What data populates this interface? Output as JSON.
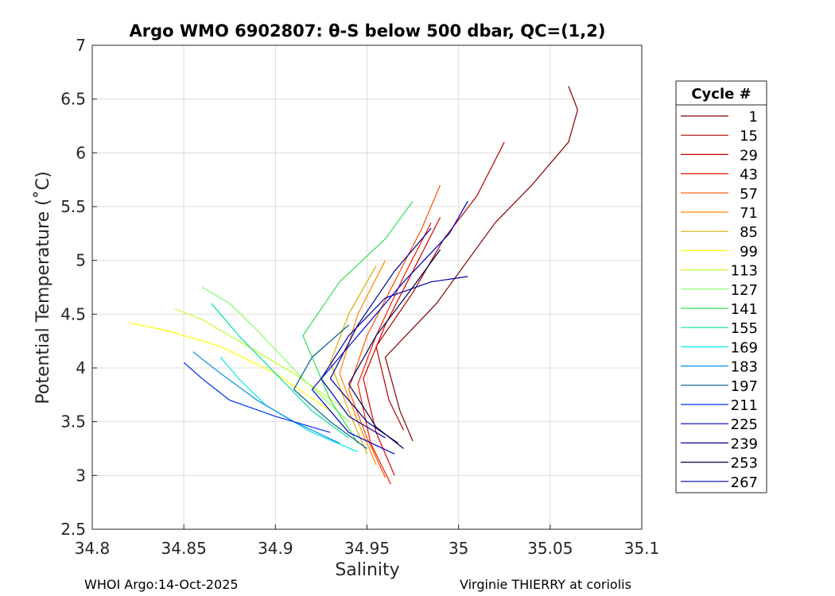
{
  "footer": {
    "left": "WHOI Argo:14-Oct-2025",
    "right": "Virginie THIERRY at coriolis"
  },
  "chart_data": {
    "type": "line",
    "title": "Argo WMO 6902807: θ-S below 500 dbar,  QC=(1,2)",
    "xlabel": "Salinity",
    "ylabel": "Potential Temperature (˚C)",
    "xlim": [
      34.8,
      35.1
    ],
    "ylim": [
      2.5,
      7
    ],
    "xticks": [
      "34.8",
      "34.85",
      "34.9",
      "34.95",
      "35",
      "35.05",
      "35.1"
    ],
    "yticks": [
      "2.5",
      "3",
      "3.5",
      "4",
      "4.5",
      "5",
      "5.5",
      "6",
      "6.5",
      "7"
    ],
    "grid": true,
    "legend": {
      "title": "Cycle #",
      "placement": "right, outside"
    },
    "series": [
      {
        "name": "1",
        "color": "#800000",
        "salinity": [
          34.975,
          34.968,
          34.96,
          34.988,
          35.005,
          35.02,
          35.04,
          35.06,
          35.065,
          35.06
        ],
        "theta": [
          3.32,
          3.6,
          4.1,
          4.6,
          5.0,
          5.35,
          5.7,
          6.1,
          6.4,
          6.62
        ]
      },
      {
        "name": "15",
        "color": "#b00000",
        "salinity": [
          34.97,
          34.962,
          34.955,
          34.975,
          34.992,
          35.01,
          35.025
        ],
        "theta": [
          3.42,
          3.7,
          4.2,
          4.7,
          5.2,
          5.6,
          6.1
        ]
      },
      {
        "name": "29",
        "color": "#d40000",
        "salinity": [
          34.965,
          34.955,
          34.948,
          34.96,
          34.975,
          34.99
        ],
        "theta": [
          3.0,
          3.4,
          3.9,
          4.4,
          4.9,
          5.4
        ]
      },
      {
        "name": "43",
        "color": "#f02000",
        "salinity": [
          34.963,
          34.952,
          34.945,
          34.955,
          34.97,
          34.985
        ],
        "theta": [
          2.92,
          3.3,
          3.85,
          4.3,
          4.85,
          5.35
        ]
      },
      {
        "name": "57",
        "color": "#ff5000",
        "salinity": [
          34.96,
          34.95,
          34.94,
          34.95,
          34.965,
          34.98,
          34.99
        ],
        "theta": [
          2.98,
          3.35,
          3.8,
          4.3,
          4.8,
          5.3,
          5.7
        ]
      },
      {
        "name": "71",
        "color": "#ff8800",
        "salinity": [
          34.955,
          34.945,
          34.935,
          34.945,
          34.96
        ],
        "theta": [
          3.1,
          3.5,
          3.95,
          4.5,
          5.0
        ]
      },
      {
        "name": "85",
        "color": "#d4b000",
        "salinity": [
          34.95,
          34.94,
          34.93,
          34.94,
          34.955
        ],
        "theta": [
          3.2,
          3.6,
          4.05,
          4.5,
          4.95
        ]
      },
      {
        "name": "99",
        "color": "#ffff00",
        "salinity": [
          34.93,
          34.9,
          34.87,
          34.84,
          34.82
        ],
        "theta": [
          3.6,
          3.95,
          4.2,
          4.35,
          4.42
        ]
      },
      {
        "name": "113",
        "color": "#c0ff30",
        "salinity": [
          34.935,
          34.91,
          34.88,
          34.86,
          34.845
        ],
        "theta": [
          3.65,
          3.95,
          4.25,
          4.45,
          4.55
        ]
      },
      {
        "name": "127",
        "color": "#80ff60",
        "salinity": [
          34.94,
          34.915,
          34.89,
          34.875,
          34.86
        ],
        "theta": [
          3.5,
          3.9,
          4.35,
          4.6,
          4.75
        ]
      },
      {
        "name": "141",
        "color": "#30e050",
        "salinity": [
          34.945,
          34.93,
          34.915,
          34.935,
          34.96,
          34.975
        ],
        "theta": [
          3.3,
          3.7,
          4.3,
          4.8,
          5.2,
          5.55
        ]
      },
      {
        "name": "155",
        "color": "#00e0a0",
        "salinity": [
          34.94,
          34.92,
          34.9,
          34.88,
          34.865
        ],
        "theta": [
          3.35,
          3.6,
          3.95,
          4.3,
          4.6
        ]
      },
      {
        "name": "169",
        "color": "#00e8e8",
        "salinity": [
          34.945,
          34.92,
          34.895,
          34.88,
          34.87
        ],
        "theta": [
          3.22,
          3.4,
          3.65,
          3.9,
          4.1
        ]
      },
      {
        "name": "183",
        "color": "#0090e8",
        "salinity": [
          34.935,
          34.91,
          34.89,
          34.87,
          34.855
        ],
        "theta": [
          3.3,
          3.5,
          3.7,
          3.95,
          4.15
        ]
      },
      {
        "name": "197",
        "color": "#005a8c",
        "salinity": [
          34.95,
          34.93,
          34.91,
          34.92,
          34.94
        ],
        "theta": [
          3.25,
          3.5,
          3.8,
          4.1,
          4.4
        ]
      },
      {
        "name": "211",
        "color": "#0030f0",
        "salinity": [
          34.93,
          34.9,
          34.875,
          34.86,
          34.85
        ],
        "theta": [
          3.4,
          3.55,
          3.7,
          3.9,
          4.05
        ]
      },
      {
        "name": "225",
        "color": "#0000c8",
        "salinity": [
          34.965,
          34.94,
          34.92,
          34.945,
          34.97,
          34.995,
          35.005
        ],
        "theta": [
          3.2,
          3.4,
          3.8,
          4.3,
          4.8,
          5.25,
          5.55
        ]
      },
      {
        "name": "239",
        "color": "#000096",
        "salinity": [
          34.967,
          34.95,
          34.93,
          34.945,
          34.965,
          34.985
        ],
        "theta": [
          3.3,
          3.5,
          3.9,
          4.4,
          4.9,
          5.3
        ]
      },
      {
        "name": "253",
        "color": "#000050",
        "salinity": [
          34.97,
          34.955,
          34.94,
          34.955,
          34.975,
          34.99
        ],
        "theta": [
          3.25,
          3.45,
          3.85,
          4.3,
          4.75,
          5.1
        ]
      },
      {
        "name": "267",
        "color": "#0000a8",
        "salinity": [
          34.96,
          34.94,
          34.925,
          34.94,
          34.96,
          34.985,
          35.005
        ],
        "theta": [
          3.35,
          3.55,
          3.9,
          4.3,
          4.65,
          4.8,
          4.85
        ]
      }
    ]
  }
}
